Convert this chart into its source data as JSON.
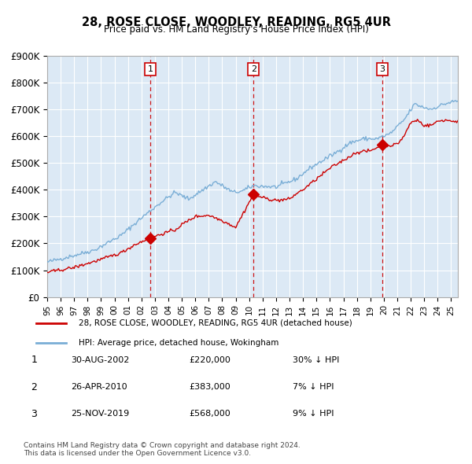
{
  "title": "28, ROSE CLOSE, WOODLEY, READING, RG5 4UR",
  "subtitle": "Price paid vs. HM Land Registry's House Price Index (HPI)",
  "bg_color": "#dce9f5",
  "plot_bg_color": "#dce9f5",
  "hpi_color": "#7aaed6",
  "price_color": "#cc0000",
  "marker_color": "#cc0000",
  "vline_color": "#cc0000",
  "ylim": [
    0,
    900000
  ],
  "yticks": [
    0,
    100000,
    200000,
    300000,
    400000,
    500000,
    600000,
    700000,
    800000,
    900000
  ],
  "ytick_labels": [
    "£0",
    "£100K",
    "£200K",
    "£300K",
    "£400K",
    "£500K",
    "£600K",
    "£700K",
    "£800K",
    "£900K"
  ],
  "xlim_start": 1995.0,
  "xlim_end": 2025.5,
  "transactions": [
    {
      "label": "1",
      "date_num": 2002.66,
      "price": 220000,
      "text": "30-AUG-2002",
      "amount": "£220,000",
      "hpi_pct": "30% ↓ HPI"
    },
    {
      "label": "2",
      "date_num": 2010.32,
      "price": 383000,
      "text": "26-APR-2010",
      "amount": "£383,000",
      "hpi_pct": "7% ↓ HPI"
    },
    {
      "label": "3",
      "date_num": 2019.9,
      "price": 568000,
      "text": "25-NOV-2019",
      "amount": "£568,000",
      "hpi_pct": "9% ↓ HPI"
    }
  ],
  "legend_entries": [
    "28, ROSE CLOSE, WOODLEY, READING, RG5 4UR (detached house)",
    "HPI: Average price, detached house, Wokingham"
  ],
  "footnote": "Contains HM Land Registry data © Crown copyright and database right 2024.\nThis data is licensed under the Open Government Licence v3.0.",
  "xtick_years": [
    1995,
    1996,
    1997,
    1998,
    1999,
    2000,
    2001,
    2002,
    2003,
    2004,
    2005,
    2006,
    2007,
    2008,
    2009,
    2010,
    2011,
    2012,
    2013,
    2014,
    2015,
    2016,
    2017,
    2018,
    2019,
    2020,
    2021,
    2022,
    2023,
    2024,
    2025
  ]
}
